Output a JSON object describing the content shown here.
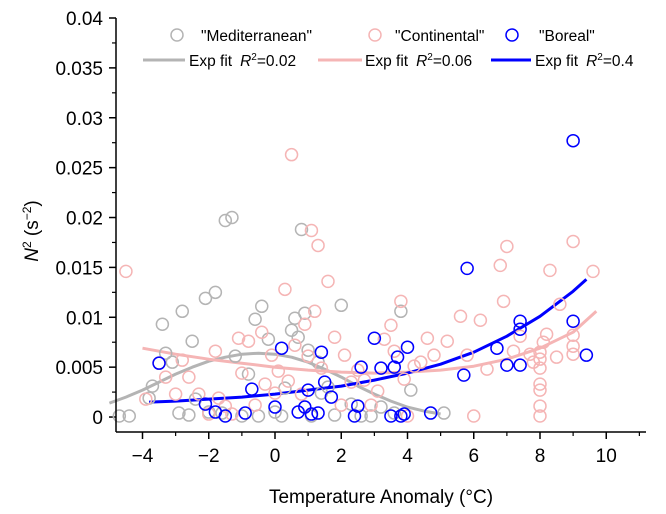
{
  "chart_data": {
    "type": "scatter",
    "xlabel": "Temperature Anomaly (°C)",
    "ylabel_main": "N",
    "ylabel_sup": "2",
    "ylabel_rest": " (s",
    "ylabel_unit_sup": "−2",
    "ylabel_close": ")",
    "xlim": [
      -4.8,
      11.2
    ],
    "ylim": [
      -0.0015,
      0.04
    ],
    "xticks": [
      -4,
      -2,
      0,
      2,
      4,
      6,
      8,
      10
    ],
    "xtick_labels": [
      "−4",
      "−2",
      "0",
      "2",
      "4",
      "6",
      "8",
      "10"
    ],
    "yticks": [
      0,
      0.005,
      0.01,
      0.015,
      0.02,
      0.025,
      0.03,
      0.035,
      0.04
    ],
    "ytick_labels": [
      "0",
      "0.005",
      "0.01",
      "0.015",
      "0.02",
      "0.025",
      "0.03",
      "0.035",
      "0.04"
    ],
    "legend_position": "top",
    "series": [
      {
        "name": "\"Mediterranean\"",
        "color": "#b4b4b4",
        "points": [
          [
            -4.7,
            0.0001
          ],
          [
            -4.4,
            0.0001
          ],
          [
            -3.8,
            0.0019
          ],
          [
            -3.7,
            0.0031
          ],
          [
            -3.4,
            0.0093
          ],
          [
            -3.3,
            0.0064
          ],
          [
            -3.1,
            0.0055
          ],
          [
            -2.9,
            0.0004
          ],
          [
            -2.8,
            0.0106
          ],
          [
            -2.6,
            0.0002
          ],
          [
            -2.5,
            0.0076
          ],
          [
            -2.4,
            0.0018
          ],
          [
            -2.1,
            0.0119
          ],
          [
            -2.0,
            0.0005
          ],
          [
            -1.8,
            0.0125
          ],
          [
            -1.6,
            0.0004
          ],
          [
            -1.5,
            0.0197
          ],
          [
            -1.3,
            0.02
          ],
          [
            -1.2,
            0.0061
          ],
          [
            -1.0,
            0.0001
          ],
          [
            -0.8,
            0.0043
          ],
          [
            -0.6,
            0.0098
          ],
          [
            -0.5,
            0.0001
          ],
          [
            -0.4,
            0.0111
          ],
          [
            -0.2,
            0.0078
          ],
          [
            0.0,
            0.0005
          ],
          [
            0.2,
            0.0001
          ],
          [
            0.3,
            0.0029
          ],
          [
            0.5,
            0.0087
          ],
          [
            0.6,
            0.0099
          ],
          [
            0.7,
            0.008
          ],
          [
            0.8,
            0.0188
          ],
          [
            0.9,
            0.0104
          ],
          [
            1.0,
            0.0067
          ],
          [
            1.1,
            0.0001
          ],
          [
            1.3,
            0.0055
          ],
          [
            1.4,
            0.0024
          ],
          [
            1.6,
            0.003
          ],
          [
            1.8,
            0.0002
          ],
          [
            2.0,
            0.0112
          ],
          [
            2.3,
            0.0013
          ],
          [
            2.6,
            0.0001
          ],
          [
            2.9,
            0.0001
          ],
          [
            3.2,
            0.001
          ],
          [
            3.6,
            0.0004
          ],
          [
            3.8,
            0.0106
          ],
          [
            4.1,
            0.0027
          ],
          [
            5.1,
            0.0004
          ]
        ],
        "fit_label": "Exp fit",
        "fit_r2": "=0.02",
        "fit_points": [
          [
            -5.0,
            0.0014
          ],
          [
            -4.5,
            0.002
          ],
          [
            -4.0,
            0.0027
          ],
          [
            -3.5,
            0.0035
          ],
          [
            -3.0,
            0.0043
          ],
          [
            -2.5,
            0.005
          ],
          [
            -2.0,
            0.0056
          ],
          [
            -1.5,
            0.006
          ],
          [
            -1.0,
            0.0063
          ],
          [
            -0.5,
            0.0064
          ],
          [
            0.0,
            0.0063
          ],
          [
            0.5,
            0.006
          ],
          [
            1.0,
            0.0055
          ],
          [
            1.5,
            0.0048
          ],
          [
            2.0,
            0.004
          ],
          [
            2.5,
            0.0031
          ],
          [
            3.0,
            0.0023
          ],
          [
            3.5,
            0.0016
          ],
          [
            4.0,
            0.001
          ],
          [
            4.5,
            0.0006
          ],
          [
            5.0,
            0.0003
          ]
        ]
      },
      {
        "name": "\"Continental\"",
        "color": "#f5b5b5",
        "points": [
          [
            -4.5,
            0.0146
          ],
          [
            -3.9,
            0.0018
          ],
          [
            -3.5,
            0.0054
          ],
          [
            -3.3,
            0.004
          ],
          [
            -3.0,
            0.0023
          ],
          [
            -2.8,
            0.0057
          ],
          [
            -2.6,
            0.004
          ],
          [
            -2.3,
            0.0023
          ],
          [
            -2.0,
            0.0003
          ],
          [
            -1.8,
            0.0066
          ],
          [
            -1.7,
            0.0019
          ],
          [
            -1.5,
            0.0011
          ],
          [
            -1.3,
            0.0003
          ],
          [
            -1.1,
            0.0079
          ],
          [
            -1.0,
            0.0044
          ],
          [
            -0.8,
            0.0076
          ],
          [
            -0.6,
            0.0012
          ],
          [
            -0.4,
            0.0085
          ],
          [
            -0.3,
            0.0033
          ],
          [
            -0.1,
            0.0062
          ],
          [
            0.0,
            0.0024
          ],
          [
            0.1,
            0.0046
          ],
          [
            0.3,
            0.0128
          ],
          [
            0.4,
            0.0036
          ],
          [
            0.5,
            0.0263
          ],
          [
            0.6,
            0.0072
          ],
          [
            0.8,
            0.0023
          ],
          [
            0.9,
            0.0093
          ],
          [
            1.0,
            0.0061
          ],
          [
            1.1,
            0.0187
          ],
          [
            1.2,
            0.0106
          ],
          [
            1.3,
            0.0172
          ],
          [
            1.4,
            0.0049
          ],
          [
            1.6,
            0.0136
          ],
          [
            1.8,
            0.008
          ],
          [
            2.0,
            0.0012
          ],
          [
            2.1,
            0.0062
          ],
          [
            2.3,
            0.0035
          ],
          [
            2.5,
            0.0047
          ],
          [
            2.7,
            0.0037
          ],
          [
            2.9,
            0.0012
          ],
          [
            3.1,
            0.0026
          ],
          [
            3.3,
            0.0078
          ],
          [
            3.5,
            0.0092
          ],
          [
            3.6,
            0.0066
          ],
          [
            3.8,
            0.0116
          ],
          [
            3.9,
            0.0038
          ],
          [
            4.0,
            0.0001
          ],
          [
            4.2,
            0.0051
          ],
          [
            4.4,
            0.0055
          ],
          [
            4.6,
            0.0079
          ],
          [
            4.8,
            0.0062
          ],
          [
            5.2,
            0.0076
          ],
          [
            5.6,
            0.0101
          ],
          [
            5.8,
            0.0062
          ],
          [
            6.0,
            0.0001
          ],
          [
            6.2,
            0.0097
          ],
          [
            6.4,
            0.0048
          ],
          [
            6.8,
            0.0152
          ],
          [
            6.9,
            0.0116
          ],
          [
            7.0,
            0.0171
          ],
          [
            7.2,
            0.0066
          ],
          [
            7.4,
            0.0081
          ],
          [
            7.7,
            0.0063
          ],
          [
            7.8,
            0.0055
          ],
          [
            8.0,
            0.0001
          ],
          [
            8.0,
            0.0011
          ],
          [
            8.0,
            0.0027
          ],
          [
            8.0,
            0.0033
          ],
          [
            8.0,
            0.0049
          ],
          [
            8.0,
            0.0058
          ],
          [
            8.0,
            0.0065
          ],
          [
            8.1,
            0.0075
          ],
          [
            8.2,
            0.0083
          ],
          [
            8.3,
            0.0147
          ],
          [
            8.5,
            0.006
          ],
          [
            8.6,
            0.0113
          ],
          [
            9.0,
            0.0071
          ],
          [
            9.0,
            0.0063
          ],
          [
            9.0,
            0.0082
          ],
          [
            9.0,
            0.0176
          ],
          [
            9.6,
            0.0146
          ]
        ],
        "fit_label": "Exp fit",
        "fit_r2": "=0.06",
        "fit_points": [
          [
            -4.0,
            0.0069
          ],
          [
            -3.0,
            0.0063
          ],
          [
            -2.0,
            0.0058
          ],
          [
            -1.0,
            0.0054
          ],
          [
            0.0,
            0.005
          ],
          [
            1.0,
            0.0047
          ],
          [
            2.0,
            0.0045
          ],
          [
            3.0,
            0.0044
          ],
          [
            4.0,
            0.0045
          ],
          [
            5.0,
            0.0047
          ],
          [
            6.0,
            0.0051
          ],
          [
            7.0,
            0.0058
          ],
          [
            8.0,
            0.0069
          ],
          [
            9.0,
            0.0085
          ],
          [
            9.7,
            0.0106
          ]
        ]
      },
      {
        "name": "\"Boreal\"",
        "color": "#0000ff",
        "points": [
          [
            -3.5,
            0.0054
          ],
          [
            -2.1,
            0.0013
          ],
          [
            -1.8,
            0.0005
          ],
          [
            -1.5,
            0.0001
          ],
          [
            -0.9,
            0.0004
          ],
          [
            -0.7,
            0.0028
          ],
          [
            0.0,
            0.001
          ],
          [
            0.2,
            0.0069
          ],
          [
            0.7,
            0.0005
          ],
          [
            0.9,
            0.001
          ],
          [
            1.0,
            0.0027
          ],
          [
            1.1,
            0.0003
          ],
          [
            1.3,
            0.0004
          ],
          [
            1.4,
            0.0065
          ],
          [
            1.5,
            0.0035
          ],
          [
            1.7,
            0.002
          ],
          [
            2.4,
            0.0001
          ],
          [
            2.5,
            0.0011
          ],
          [
            2.6,
            0.005
          ],
          [
            3.0,
            0.0079
          ],
          [
            3.2,
            0.0049
          ],
          [
            3.5,
            0.0001
          ],
          [
            3.6,
            0.005
          ],
          [
            3.7,
            0.006
          ],
          [
            3.8,
            0.0001
          ],
          [
            3.9,
            0.0003
          ],
          [
            4.0,
            0.007
          ],
          [
            4.7,
            0.0004
          ],
          [
            5.7,
            0.0042
          ],
          [
            5.8,
            0.0149
          ],
          [
            6.7,
            0.0069
          ],
          [
            7.0,
            0.0052
          ],
          [
            7.4,
            0.0052
          ],
          [
            7.4,
            0.0088
          ],
          [
            7.4,
            0.0096
          ],
          [
            9.0,
            0.0096
          ],
          [
            9.0,
            0.0277
          ],
          [
            9.4,
            0.0062
          ]
        ],
        "fit_label": "Exp fit",
        "fit_r2": "=0.4",
        "fit_points": [
          [
            -3.8,
            0.0015
          ],
          [
            -3.0,
            0.0016
          ],
          [
            -2.0,
            0.0018
          ],
          [
            -1.0,
            0.002
          ],
          [
            0.0,
            0.0023
          ],
          [
            1.0,
            0.0027
          ],
          [
            2.0,
            0.0031
          ],
          [
            3.0,
            0.0037
          ],
          [
            4.0,
            0.0044
          ],
          [
            5.0,
            0.0053
          ],
          [
            6.0,
            0.0065
          ],
          [
            7.0,
            0.0081
          ],
          [
            8.0,
            0.0101
          ],
          [
            9.0,
            0.0126
          ],
          [
            9.4,
            0.0138
          ]
        ]
      }
    ]
  }
}
